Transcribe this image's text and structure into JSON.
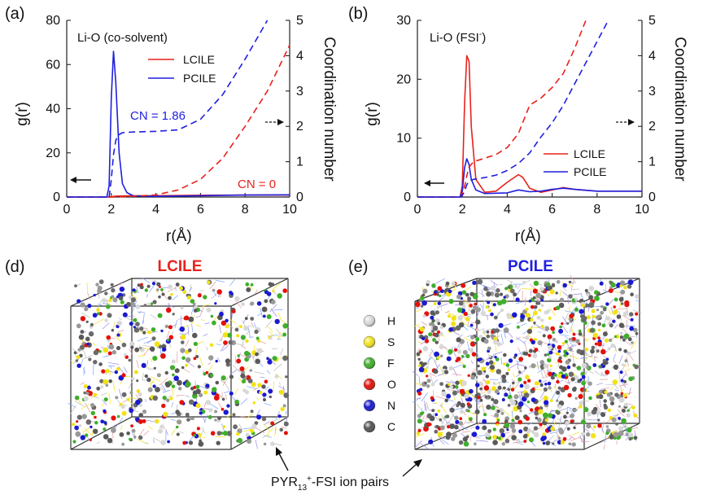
{
  "colors": {
    "lcile": "#e8221c",
    "pcile": "#1f1fe0",
    "axis": "#222222",
    "H": "#d9d9d9",
    "S": "#f2e21a",
    "F": "#3fae2a",
    "O": "#e3120b",
    "N": "#1a1ad0",
    "C": "#555555"
  },
  "chart_data": [
    {
      "type": "line",
      "panel": "(a)",
      "title": "Li-O (co-solvent)",
      "xlabel": "r(Å)",
      "ylabel": "g(r)",
      "y2label": "Coordination number",
      "xlim": [
        0,
        10
      ],
      "ylim": [
        0,
        80
      ],
      "y2lim": [
        0,
        5
      ],
      "xticks": [
        0,
        2,
        4,
        6,
        8,
        10
      ],
      "yticks": [
        0,
        20,
        40,
        60,
        80
      ],
      "y2ticks": [
        0,
        1,
        2,
        3,
        4,
        5
      ],
      "legend": [
        "LCILE",
        "PCILE"
      ],
      "series": [
        {
          "name": "LCILE",
          "axis": "left",
          "style": "solid",
          "color": "#e8221c",
          "x": [
            0,
            1.9,
            2.0,
            2.2,
            2.6,
            4,
            6,
            8,
            10
          ],
          "y": [
            0,
            0,
            0.2,
            0.4,
            0.5,
            0.6,
            0.8,
            0.9,
            0.9
          ]
        },
        {
          "name": "PCILE",
          "axis": "left",
          "style": "solid",
          "color": "#1f1fe0",
          "x": [
            0,
            1.8,
            1.9,
            2.0,
            2.1,
            2.2,
            2.35,
            2.5,
            2.7,
            3.0,
            4,
            6,
            8,
            10
          ],
          "y": [
            0,
            0,
            5,
            45,
            66,
            52,
            20,
            6,
            2,
            0.5,
            0.3,
            0.6,
            0.9,
            1.0
          ]
        },
        {
          "name": "LCILE CN",
          "axis": "right",
          "style": "dashed",
          "color": "#e8221c",
          "x": [
            0,
            2,
            3,
            4,
            5,
            6,
            7,
            8,
            9,
            10
          ],
          "y": [
            0,
            0,
            0.02,
            0.06,
            0.2,
            0.5,
            1.1,
            2.0,
            3.0,
            4.3
          ]
        },
        {
          "name": "PCILE CN",
          "axis": "right",
          "style": "dashed",
          "color": "#1f1fe0",
          "x": [
            0,
            1.9,
            2.0,
            2.1,
            2.2,
            2.3,
            2.5,
            3,
            4,
            5,
            6,
            7,
            8,
            9
          ],
          "y": [
            0,
            0,
            0.5,
            1.2,
            1.6,
            1.75,
            1.82,
            1.84,
            1.86,
            1.9,
            2.2,
            2.9,
            3.9,
            5.0
          ]
        }
      ],
      "annotations": {
        "cn_pcile": "CN = 1.86",
        "cn_lcile": "CN = 0"
      }
    },
    {
      "type": "line",
      "panel": "(b)",
      "title_main": "Li-O (FSI",
      "title_sup": "-",
      "title_close": ")",
      "xlabel": "r(Å)",
      "ylabel": "g(r)",
      "y2label": "Coordination number",
      "xlim": [
        0,
        10
      ],
      "ylim": [
        0,
        30
      ],
      "y2lim": [
        0,
        5
      ],
      "xticks": [
        0,
        2,
        4,
        6,
        8,
        10
      ],
      "yticks": [
        0,
        10,
        20,
        30
      ],
      "y2ticks": [
        0,
        1,
        2,
        3,
        4,
        5
      ],
      "legend": [
        "LCILE",
        "PCILE"
      ],
      "series": [
        {
          "name": "LCILE",
          "axis": "left",
          "style": "solid",
          "color": "#e8221c",
          "x": [
            0,
            1.9,
            2.0,
            2.1,
            2.2,
            2.3,
            2.4,
            2.6,
            3.0,
            3.5,
            4.0,
            4.5,
            4.7,
            5.0,
            5.5,
            6.0,
            6.5,
            7.0,
            8.0,
            9.0,
            10.0
          ],
          "y": [
            0,
            0,
            2,
            16,
            24,
            23,
            12,
            3,
            0.8,
            1.0,
            2.5,
            3.8,
            3.3,
            1.5,
            0.8,
            1.2,
            1.6,
            1.3,
            1.0,
            1.0,
            1.0
          ]
        },
        {
          "name": "PCILE",
          "axis": "left",
          "style": "solid",
          "color": "#1f1fe0",
          "x": [
            0,
            1.9,
            2.0,
            2.1,
            2.2,
            2.3,
            2.4,
            2.6,
            3.0,
            4.0,
            4.5,
            5.0,
            5.5,
            6.0,
            6.5,
            7.0,
            8.0,
            9.0,
            10.0
          ],
          "y": [
            0,
            0,
            1,
            5,
            6.5,
            5.5,
            3,
            1.2,
            0.6,
            0.7,
            1.2,
            0.9,
            1.0,
            1.3,
            1.5,
            1.3,
            1.0,
            1.0,
            1.0
          ]
        },
        {
          "name": "LCILE CN",
          "axis": "right",
          "style": "dashed",
          "color": "#e8221c",
          "x": [
            0,
            1.95,
            2.1,
            2.2,
            2.3,
            2.5,
            3,
            3.5,
            4,
            4.5,
            5,
            5.5,
            6,
            6.5,
            7,
            7.5
          ],
          "y": [
            0,
            0,
            0.3,
            0.6,
            0.85,
            1.0,
            1.1,
            1.2,
            1.4,
            1.8,
            2.6,
            2.8,
            3.1,
            3.5,
            4.2,
            5.0
          ]
        },
        {
          "name": "PCILE CN",
          "axis": "right",
          "style": "dashed",
          "color": "#1f1fe0",
          "x": [
            0,
            1.95,
            2.1,
            2.2,
            2.3,
            2.5,
            3,
            3.5,
            4,
            4.5,
            5,
            5.5,
            6,
            6.5,
            7,
            7.5,
            8,
            8.5
          ],
          "y": [
            0,
            0,
            0.15,
            0.35,
            0.45,
            0.5,
            0.55,
            0.62,
            0.75,
            0.95,
            1.25,
            1.7,
            2.1,
            2.6,
            3.2,
            3.8,
            4.4,
            5.0
          ]
        }
      ]
    }
  ],
  "boxes": {
    "d_label": "(d)",
    "d_title": "LCILE",
    "e_label": "(e)",
    "e_title": "PCILE",
    "ion_pair_main": "PYR",
    "ion_pair_sub": "13",
    "ion_pair_sup": "+",
    "ion_pair_rest": "-FSI ion pairs"
  },
  "atom_legend": [
    {
      "symbol": "H",
      "color": "#d9d9d9"
    },
    {
      "symbol": "S",
      "color": "#f2e21a"
    },
    {
      "symbol": "F",
      "color": "#3fae2a"
    },
    {
      "symbol": "O",
      "color": "#e3120b"
    },
    {
      "symbol": "N",
      "color": "#1a1ad0"
    },
    {
      "symbol": "C",
      "color": "#555555"
    }
  ]
}
